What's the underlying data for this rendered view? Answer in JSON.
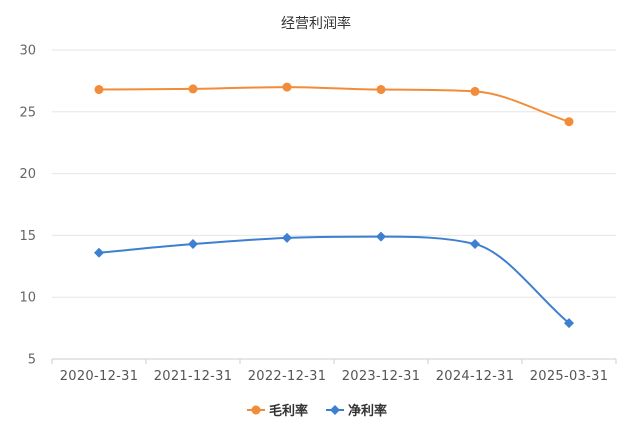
{
  "chart_data": {
    "type": "line",
    "title": "经营利润率",
    "categories": [
      "2020-12-31",
      "2021-12-31",
      "2022-12-31",
      "2023-12-31",
      "2024-12-31",
      "2025-03-31"
    ],
    "series": [
      {
        "name": "毛利率",
        "values": [
          26.8,
          26.85,
          27.0,
          26.8,
          26.65,
          24.2
        ],
        "color": "#f28c38",
        "marker": "circle"
      },
      {
        "name": "净利率",
        "values": [
          13.6,
          14.3,
          14.8,
          14.9,
          14.3,
          7.9
        ],
        "color": "#3d7fd1",
        "marker": "diamond"
      }
    ],
    "ylim": [
      5,
      30
    ],
    "yticks": [
      "5",
      "10",
      "15",
      "20",
      "25",
      "30"
    ],
    "grid": true,
    "legend_position": "bottom-center"
  }
}
